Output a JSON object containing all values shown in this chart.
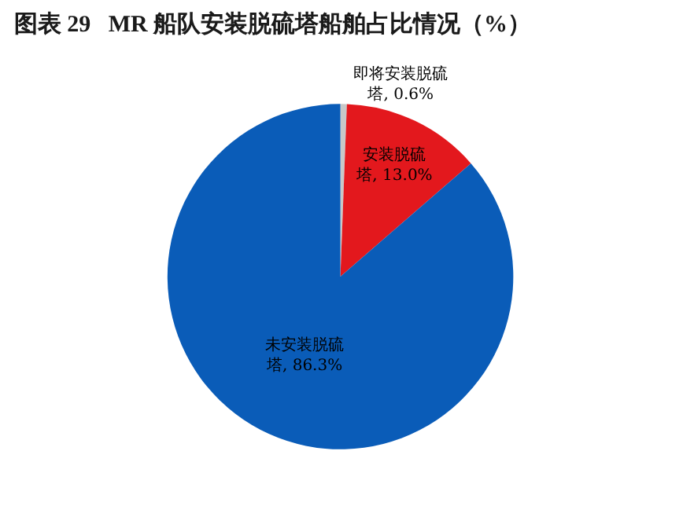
{
  "chart_data": {
    "type": "pie",
    "title": "图表 29   MR 船队安装脱硫塔船舶占比情况（%）",
    "categories": [
      "即将安装脱硫塔",
      "安装脱硫塔",
      "未安装脱硫塔"
    ],
    "values": [
      0.6,
      13.0,
      86.3
    ],
    "value_labels": [
      "0.6%",
      "13.0%",
      "86.3%"
    ],
    "colors": [
      "#c8c8c8",
      "#e3181d",
      "#0a5cb8"
    ],
    "legend": false
  }
}
